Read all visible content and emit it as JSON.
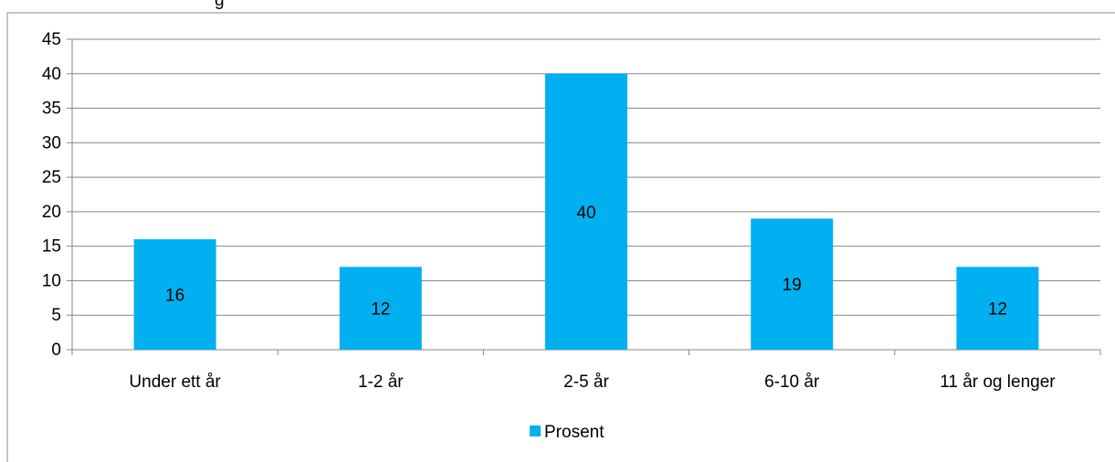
{
  "chart_data": {
    "type": "bar",
    "title": "",
    "title_fragment": "g",
    "xlabel": "",
    "ylabel": "",
    "categories": [
      "Under ett år",
      "1-2 år",
      "2-5 år",
      "6-10 år",
      "11 år og lenger"
    ],
    "series": [
      {
        "name": "Prosent",
        "values": [
          16,
          12,
          40,
          19,
          12
        ],
        "color": "#00B0F0"
      }
    ],
    "data_labels": [
      "16",
      "12",
      "40",
      "19",
      "12"
    ],
    "ylim": [
      0,
      45
    ],
    "y_ticks": [
      0,
      5,
      10,
      15,
      20,
      25,
      30,
      35,
      40,
      45
    ],
    "grid": true,
    "legend_position": "bottom"
  }
}
